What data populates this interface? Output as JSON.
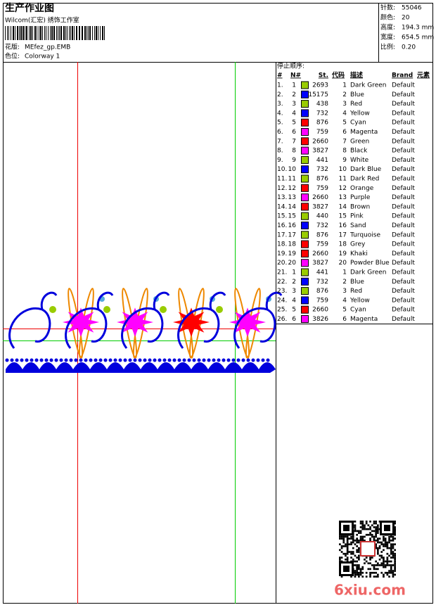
{
  "header": {
    "title": "生产作业图",
    "company": "Wilcom(汇宏) 绣饰工作室",
    "design_label": "花版:",
    "design": "MEfez_gp.EMB",
    "colorway_label": "色位:",
    "colorway": "Colorway 1"
  },
  "stats": [
    {
      "label": "针数:",
      "value": "55046"
    },
    {
      "label": "颜色:",
      "value": "20"
    },
    {
      "label": "高度:",
      "value": "194.3 mm"
    },
    {
      "label": "宽度:",
      "value": "654.5 mm"
    },
    {
      "label": "比例:",
      "value": "0.20"
    }
  ],
  "sequence": {
    "title": "停止顺序:",
    "headers": [
      "#",
      "N#",
      "St.",
      "代码",
      "描述",
      "Brand",
      "元素"
    ],
    "rows": [
      {
        "num": "1.",
        "n": "1",
        "color": "#9c0",
        "st": "2693",
        "code": "1",
        "desc": "Dark Green",
        "brand": "Default"
      },
      {
        "num": "2.",
        "n": "2",
        "color": "#00f",
        "st": "15175",
        "code": "2",
        "desc": "Blue",
        "brand": "Default"
      },
      {
        "num": "3.",
        "n": "3",
        "color": "#9c0",
        "st": "438",
        "code": "3",
        "desc": "Red",
        "brand": "Default"
      },
      {
        "num": "4.",
        "n": "4",
        "color": "#00f",
        "st": "732",
        "code": "4",
        "desc": "Yellow",
        "brand": "Default"
      },
      {
        "num": "5.",
        "n": "5",
        "color": "#f00",
        "st": "876",
        "code": "5",
        "desc": "Cyan",
        "brand": "Default"
      },
      {
        "num": "6.",
        "n": "6",
        "color": "#f0f",
        "st": "759",
        "code": "6",
        "desc": "Magenta",
        "brand": "Default"
      },
      {
        "num": "7.",
        "n": "7",
        "color": "#f00",
        "st": "2660",
        "code": "7",
        "desc": "Green",
        "brand": "Default"
      },
      {
        "num": "8.",
        "n": "8",
        "color": "#f0f",
        "st": "3827",
        "code": "8",
        "desc": "Black",
        "brand": "Default"
      },
      {
        "num": "9.",
        "n": "9",
        "color": "#9c0",
        "st": "441",
        "code": "9",
        "desc": "White",
        "brand": "Default"
      },
      {
        "num": "10.",
        "n": "10",
        "color": "#00f",
        "st": "732",
        "code": "10",
        "desc": "Dark Blue",
        "brand": "Default"
      },
      {
        "num": "11.",
        "n": "11",
        "color": "#9c0",
        "st": "876",
        "code": "11",
        "desc": "Dark Red",
        "brand": "Default"
      },
      {
        "num": "12.",
        "n": "12",
        "color": "#f00",
        "st": "759",
        "code": "12",
        "desc": "Orange",
        "brand": "Default"
      },
      {
        "num": "13.",
        "n": "13",
        "color": "#f0f",
        "st": "2660",
        "code": "13",
        "desc": "Purple",
        "brand": "Default"
      },
      {
        "num": "14.",
        "n": "14",
        "color": "#f00",
        "st": "3827",
        "code": "14",
        "desc": "Brown",
        "brand": "Default"
      },
      {
        "num": "15.",
        "n": "15",
        "color": "#9c0",
        "st": "440",
        "code": "15",
        "desc": "Pink",
        "brand": "Default"
      },
      {
        "num": "16.",
        "n": "16",
        "color": "#00f",
        "st": "732",
        "code": "16",
        "desc": "Sand",
        "brand": "Default"
      },
      {
        "num": "17.",
        "n": "17",
        "color": "#9c0",
        "st": "876",
        "code": "17",
        "desc": "Turquoise",
        "brand": "Default"
      },
      {
        "num": "18.",
        "n": "18",
        "color": "#f00",
        "st": "759",
        "code": "18",
        "desc": "Grey",
        "brand": "Default"
      },
      {
        "num": "19.",
        "n": "19",
        "color": "#f00",
        "st": "2660",
        "code": "19",
        "desc": "Khaki",
        "brand": "Default"
      },
      {
        "num": "20.",
        "n": "20",
        "color": "#f0f",
        "st": "3827",
        "code": "20",
        "desc": "Powder Blue",
        "brand": "Default"
      },
      {
        "num": "21.",
        "n": "1",
        "color": "#9c0",
        "st": "441",
        "code": "1",
        "desc": "Dark Green",
        "brand": "Default"
      },
      {
        "num": "22.",
        "n": "2",
        "color": "#00f",
        "st": "732",
        "code": "2",
        "desc": "Blue",
        "brand": "Default"
      },
      {
        "num": "23.",
        "n": "3",
        "color": "#9c0",
        "st": "876",
        "code": "3",
        "desc": "Red",
        "brand": "Default"
      },
      {
        "num": "24.",
        "n": "4",
        "color": "#00f",
        "st": "759",
        "code": "4",
        "desc": "Yellow",
        "brand": "Default"
      },
      {
        "num": "25.",
        "n": "5",
        "color": "#f00",
        "st": "2660",
        "code": "5",
        "desc": "Cyan",
        "brand": "Default"
      },
      {
        "num": "26.",
        "n": "6",
        "color": "#f0f",
        "st": "3826",
        "code": "6",
        "desc": "Magenta",
        "brand": "Default"
      }
    ]
  },
  "watermark": "6xiu.com"
}
